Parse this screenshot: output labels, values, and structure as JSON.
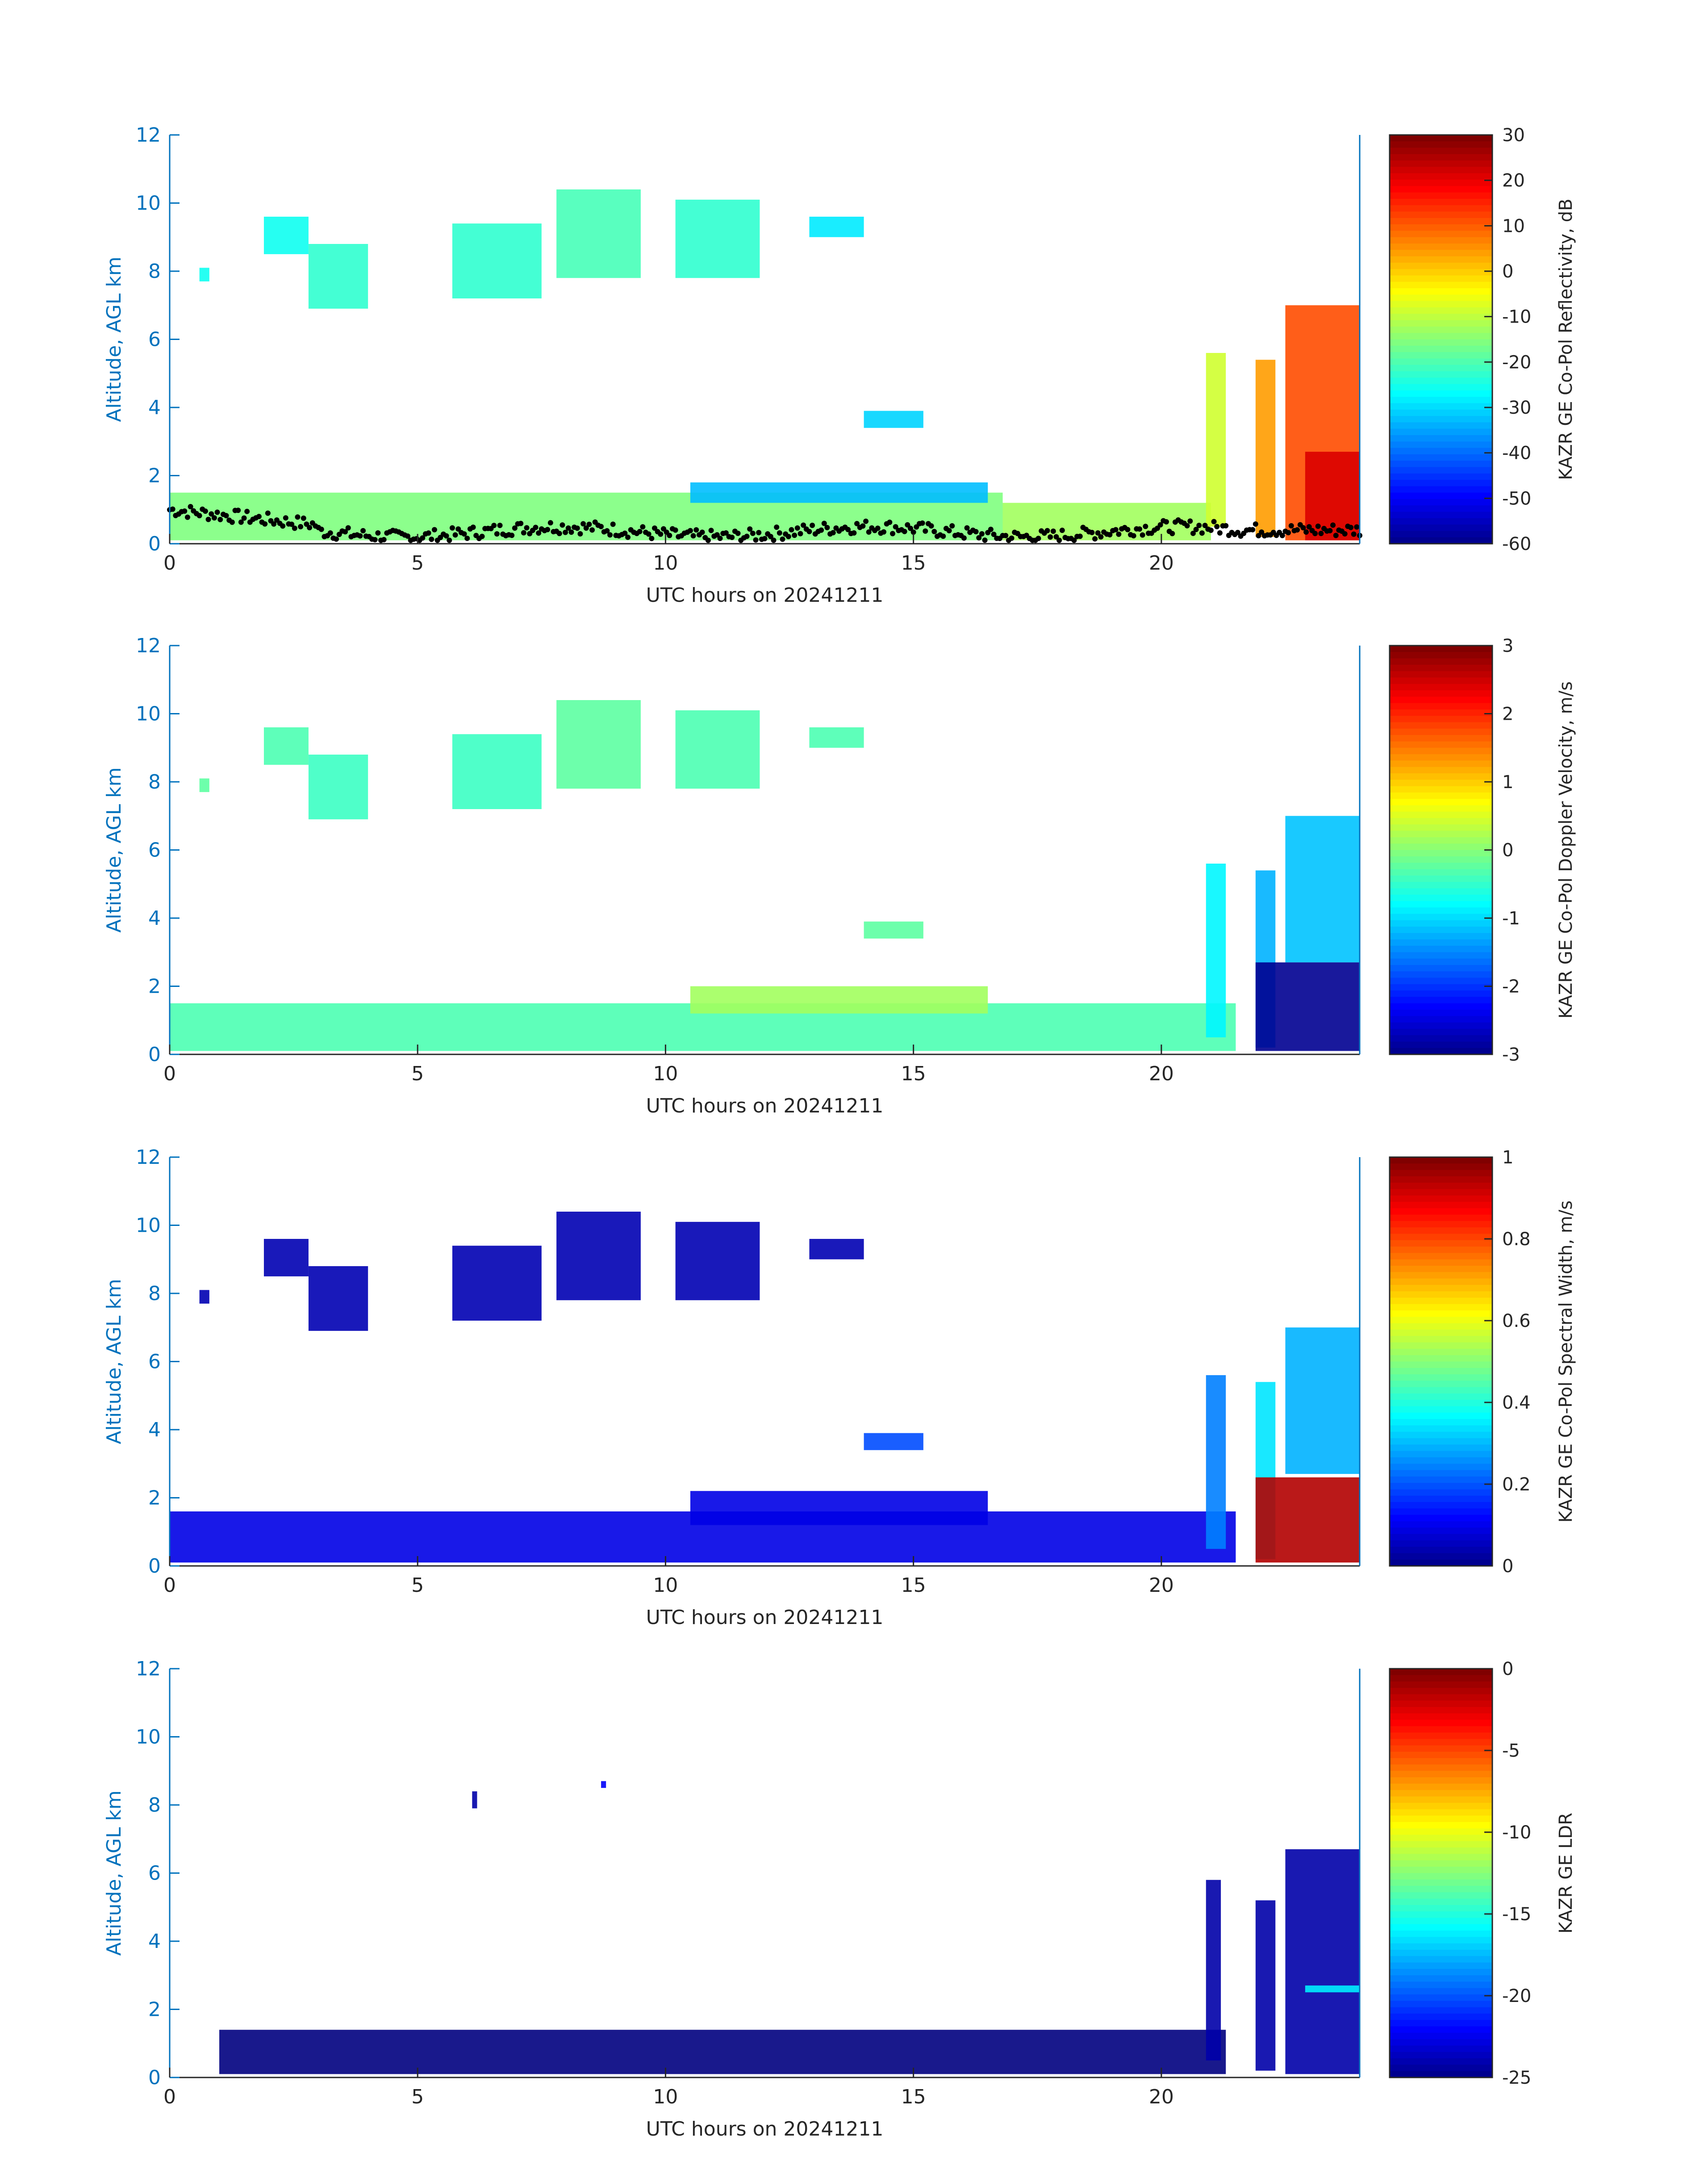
{
  "colors": {
    "axis": "#0072bd",
    "text": "#262626",
    "overlay_points": "#000000"
  },
  "chart_data": [
    {
      "type": "heatmap",
      "id": "reflectivity",
      "xlabel": "UTC hours on 20241211",
      "ylabel": "Altitude, AGL km",
      "xlim": [
        0,
        24
      ],
      "ylim": [
        0,
        12
      ],
      "x_ticks": [
        "0",
        "5",
        "10",
        "15",
        "20"
      ],
      "y_ticks": [
        "0",
        "2",
        "4",
        "6",
        "8",
        "10",
        "12"
      ],
      "colorbar": {
        "label": "KAZR GE Co-Pol Reflectivity, dB",
        "colormap": "jet",
        "range": [
          -60,
          30
        ],
        "ticks": [
          "30",
          "20",
          "10",
          "0",
          "-10",
          "-20",
          "-30",
          "-40",
          "-50",
          "-60"
        ]
      },
      "overlay": "cloud base points (black)",
      "regions": [
        {
          "x0": 0.0,
          "x1": 16.8,
          "y0": 0.1,
          "y1": 1.5,
          "value": -15
        },
        {
          "x0": 16.8,
          "x1": 21.0,
          "y0": 0.1,
          "y1": 1.2,
          "value": -12
        },
        {
          "x0": 0.6,
          "x1": 0.8,
          "y0": 7.7,
          "y1": 8.1,
          "value": -25
        },
        {
          "x0": 1.9,
          "x1": 2.8,
          "y0": 8.5,
          "y1": 9.6,
          "value": -25
        },
        {
          "x0": 2.8,
          "x1": 4.0,
          "y0": 6.9,
          "y1": 8.8,
          "value": -22
        },
        {
          "x0": 5.7,
          "x1": 7.5,
          "y0": 7.2,
          "y1": 9.4,
          "value": -22
        },
        {
          "x0": 7.8,
          "x1": 9.5,
          "y0": 7.8,
          "y1": 10.4,
          "value": -20
        },
        {
          "x0": 10.2,
          "x1": 11.9,
          "y0": 7.8,
          "y1": 10.1,
          "value": -22
        },
        {
          "x0": 12.9,
          "x1": 14.0,
          "y0": 9.0,
          "y1": 9.6,
          "value": -28
        },
        {
          "x0": 14.0,
          "x1": 15.2,
          "y0": 3.4,
          "y1": 3.9,
          "value": -30
        },
        {
          "x0": 10.5,
          "x1": 16.5,
          "y0": 1.2,
          "y1": 1.8,
          "value": -32
        },
        {
          "x0": 20.9,
          "x1": 21.3,
          "y0": 0.5,
          "y1": 5.6,
          "value": -8
        },
        {
          "x0": 21.9,
          "x1": 22.3,
          "y0": 0.2,
          "y1": 5.4,
          "value": 5
        },
        {
          "x0": 22.5,
          "x1": 24.0,
          "y0": 0.1,
          "y1": 7.0,
          "value": 12
        },
        {
          "x0": 22.9,
          "x1": 24.0,
          "y0": 0.1,
          "y1": 2.7,
          "value": 22
        }
      ]
    },
    {
      "type": "heatmap",
      "id": "doppler_velocity",
      "xlabel": "UTC hours on 20241211",
      "ylabel": "Altitude, AGL km",
      "xlim": [
        0,
        24
      ],
      "ylim": [
        0,
        12
      ],
      "x_ticks": [
        "0",
        "5",
        "10",
        "15",
        "20"
      ],
      "y_ticks": [
        "0",
        "2",
        "4",
        "6",
        "8",
        "10",
        "12"
      ],
      "colorbar": {
        "label": "KAZR GE Co-Pol Doppler Velocity, m/s",
        "colormap": "jet",
        "range": [
          -3,
          3
        ],
        "ticks": [
          "3",
          "2",
          "1",
          "0",
          "-1",
          "-2",
          "-3"
        ]
      },
      "regions": [
        {
          "x0": 0.0,
          "x1": 21.5,
          "y0": 0.1,
          "y1": 1.5,
          "value": -0.3
        },
        {
          "x0": 0.6,
          "x1": 0.8,
          "y0": 7.7,
          "y1": 8.1,
          "value": -0.2
        },
        {
          "x0": 1.9,
          "x1": 2.8,
          "y0": 8.5,
          "y1": 9.6,
          "value": -0.3
        },
        {
          "x0": 2.8,
          "x1": 4.0,
          "y0": 6.9,
          "y1": 8.8,
          "value": -0.4
        },
        {
          "x0": 5.7,
          "x1": 7.5,
          "y0": 7.2,
          "y1": 9.4,
          "value": -0.4
        },
        {
          "x0": 7.8,
          "x1": 9.5,
          "y0": 7.8,
          "y1": 10.4,
          "value": -0.2
        },
        {
          "x0": 10.2,
          "x1": 11.9,
          "y0": 7.8,
          "y1": 10.1,
          "value": -0.3
        },
        {
          "x0": 12.9,
          "x1": 14.0,
          "y0": 9.0,
          "y1": 9.6,
          "value": -0.3
        },
        {
          "x0": 14.0,
          "x1": 15.2,
          "y0": 3.4,
          "y1": 3.9,
          "value": -0.2
        },
        {
          "x0": 10.5,
          "x1": 16.5,
          "y0": 1.2,
          "y1": 2.0,
          "value": 0.2
        },
        {
          "x0": 20.9,
          "x1": 21.3,
          "y0": 0.5,
          "y1": 5.6,
          "value": -0.8
        },
        {
          "x0": 21.9,
          "x1": 22.3,
          "y0": 0.2,
          "y1": 5.4,
          "value": -1.2
        },
        {
          "x0": 22.5,
          "x1": 24.0,
          "y0": 2.7,
          "y1": 7.0,
          "value": -1.1
        },
        {
          "x0": 21.9,
          "x1": 24.0,
          "y0": 0.1,
          "y1": 2.7,
          "value": -2.9
        }
      ]
    },
    {
      "type": "heatmap",
      "id": "spectral_width",
      "xlabel": "UTC hours on 20241211",
      "ylabel": "Altitude, AGL km",
      "xlim": [
        0,
        24
      ],
      "ylim": [
        0,
        12
      ],
      "x_ticks": [
        "0",
        "5",
        "10",
        "15",
        "20"
      ],
      "y_ticks": [
        "0",
        "2",
        "4",
        "6",
        "8",
        "10",
        "12"
      ],
      "colorbar": {
        "label": "KAZR GE Co-Pol Spectral Width, m/s",
        "colormap": "jet",
        "range": [
          0,
          1
        ],
        "ticks": [
          "1",
          "0.8",
          "0.6",
          "0.4",
          "0.2",
          "0"
        ]
      },
      "regions": [
        {
          "x0": 0.0,
          "x1": 21.5,
          "y0": 0.1,
          "y1": 1.6,
          "value": 0.1
        },
        {
          "x0": 0.6,
          "x1": 0.8,
          "y0": 7.7,
          "y1": 8.1,
          "value": 0.05
        },
        {
          "x0": 1.9,
          "x1": 2.8,
          "y0": 8.5,
          "y1": 9.6,
          "value": 0.05
        },
        {
          "x0": 2.8,
          "x1": 4.0,
          "y0": 6.9,
          "y1": 8.8,
          "value": 0.05
        },
        {
          "x0": 5.7,
          "x1": 7.5,
          "y0": 7.2,
          "y1": 9.4,
          "value": 0.05
        },
        {
          "x0": 7.8,
          "x1": 9.5,
          "y0": 7.8,
          "y1": 10.4,
          "value": 0.05
        },
        {
          "x0": 10.2,
          "x1": 11.9,
          "y0": 7.8,
          "y1": 10.1,
          "value": 0.05
        },
        {
          "x0": 12.9,
          "x1": 14.0,
          "y0": 9.0,
          "y1": 9.6,
          "value": 0.05
        },
        {
          "x0": 14.0,
          "x1": 15.2,
          "y0": 3.4,
          "y1": 3.9,
          "value": 0.2
        },
        {
          "x0": 10.5,
          "x1": 16.5,
          "y0": 1.2,
          "y1": 2.2,
          "value": 0.1
        },
        {
          "x0": 20.9,
          "x1": 21.3,
          "y0": 0.5,
          "y1": 5.6,
          "value": 0.25
        },
        {
          "x0": 21.9,
          "x1": 22.3,
          "y0": 0.2,
          "y1": 5.4,
          "value": 0.35
        },
        {
          "x0": 22.5,
          "x1": 24.0,
          "y0": 2.7,
          "y1": 7.0,
          "value": 0.3
        },
        {
          "x0": 21.9,
          "x1": 24.0,
          "y0": 0.1,
          "y1": 2.6,
          "value": 0.95
        }
      ]
    },
    {
      "type": "heatmap",
      "id": "ldr",
      "xlabel": "UTC hours on 20241211",
      "ylabel": "Altitude, AGL km",
      "xlim": [
        0,
        24
      ],
      "ylim": [
        0,
        12
      ],
      "x_ticks": [
        "0",
        "5",
        "10",
        "15",
        "20"
      ],
      "y_ticks": [
        "0",
        "2",
        "4",
        "6",
        "8",
        "10",
        "12"
      ],
      "colorbar": {
        "label": "KAZR GE LDR",
        "colormap": "jet",
        "range": [
          -25,
          0
        ],
        "ticks": [
          "0",
          "-5",
          "-10",
          "-15",
          "-20",
          "-25"
        ]
      },
      "regions": [
        {
          "x0": 1.0,
          "x1": 21.3,
          "y0": 0.1,
          "y1": 1.4,
          "value": -25
        },
        {
          "x0": 6.1,
          "x1": 6.2,
          "y0": 7.9,
          "y1": 8.4,
          "value": -24
        },
        {
          "x0": 8.7,
          "x1": 8.8,
          "y0": 8.5,
          "y1": 8.7,
          "value": -22
        },
        {
          "x0": 20.9,
          "x1": 21.2,
          "y0": 0.5,
          "y1": 5.8,
          "value": -24
        },
        {
          "x0": 21.9,
          "x1": 22.3,
          "y0": 0.2,
          "y1": 5.2,
          "value": -24
        },
        {
          "x0": 22.5,
          "x1": 24.0,
          "y0": 0.1,
          "y1": 6.7,
          "value": -24
        },
        {
          "x0": 22.9,
          "x1": 24.0,
          "y0": 2.5,
          "y1": 2.7,
          "value": -16
        }
      ]
    }
  ]
}
